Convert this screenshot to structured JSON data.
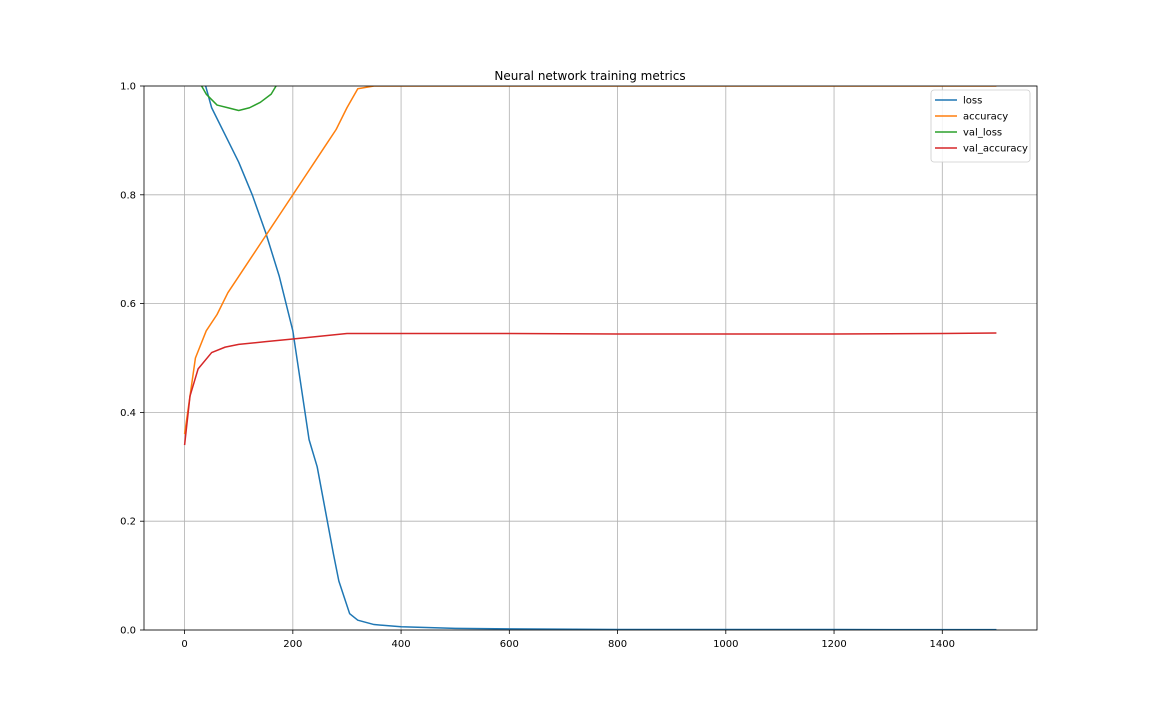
{
  "chart_data": {
    "type": "line",
    "title": "Neural network training metrics",
    "xlabel": "",
    "ylabel": "",
    "xlim": [
      -75,
      1575
    ],
    "ylim": [
      0.0,
      1.0
    ],
    "x_ticks": [
      0,
      200,
      400,
      600,
      800,
      1000,
      1200,
      1400
    ],
    "y_ticks": [
      0.0,
      0.2,
      0.4,
      0.6,
      0.8,
      1.0
    ],
    "x_tick_labels": [
      "0",
      "200",
      "400",
      "600",
      "800",
      "1000",
      "1200",
      "1400"
    ],
    "y_tick_labels": [
      "0.0",
      "0.2",
      "0.4",
      "0.6",
      "0.8",
      "1.0"
    ],
    "grid": true,
    "legend_position": "top-right",
    "series": [
      {
        "name": "loss",
        "color": "#1f77b4",
        "points": [
          [
            0,
            1.4
          ],
          [
            25,
            1.05
          ],
          [
            50,
            0.96
          ],
          [
            75,
            0.91
          ],
          [
            100,
            0.86
          ],
          [
            125,
            0.8
          ],
          [
            150,
            0.73
          ],
          [
            175,
            0.65
          ],
          [
            200,
            0.55
          ],
          [
            215,
            0.45
          ],
          [
            230,
            0.35
          ],
          [
            245,
            0.3
          ],
          [
            260,
            0.22
          ],
          [
            275,
            0.14
          ],
          [
            285,
            0.09
          ],
          [
            295,
            0.06
          ],
          [
            305,
            0.03
          ],
          [
            320,
            0.018
          ],
          [
            350,
            0.01
          ],
          [
            400,
            0.006
          ],
          [
            500,
            0.003
          ],
          [
            600,
            0.002
          ],
          [
            800,
            0.001
          ],
          [
            1000,
            0.001
          ],
          [
            1200,
            0.0008
          ],
          [
            1500,
            0.0006
          ]
        ]
      },
      {
        "name": "accuracy",
        "color": "#ff7f0e",
        "points": [
          [
            0,
            0.36
          ],
          [
            20,
            0.5
          ],
          [
            40,
            0.55
          ],
          [
            60,
            0.58
          ],
          [
            80,
            0.62
          ],
          [
            100,
            0.65
          ],
          [
            120,
            0.68
          ],
          [
            140,
            0.71
          ],
          [
            160,
            0.74
          ],
          [
            180,
            0.77
          ],
          [
            200,
            0.8
          ],
          [
            220,
            0.83
          ],
          [
            240,
            0.86
          ],
          [
            260,
            0.89
          ],
          [
            280,
            0.92
          ],
          [
            300,
            0.96
          ],
          [
            320,
            0.995
          ],
          [
            350,
            1.0
          ],
          [
            1500,
            1.0
          ]
        ]
      },
      {
        "name": "val_loss",
        "color": "#2ca02c",
        "points": [
          [
            0,
            1.3
          ],
          [
            20,
            1.02
          ],
          [
            40,
            0.985
          ],
          [
            60,
            0.965
          ],
          [
            80,
            0.96
          ],
          [
            100,
            0.955
          ],
          [
            120,
            0.96
          ],
          [
            140,
            0.97
          ],
          [
            160,
            0.985
          ],
          [
            175,
            1.01
          ],
          [
            200,
            1.06
          ],
          [
            300,
            1.3
          ]
        ]
      },
      {
        "name": "val_accuracy",
        "color": "#d62728",
        "points": [
          [
            0,
            0.34
          ],
          [
            10,
            0.43
          ],
          [
            25,
            0.48
          ],
          [
            50,
            0.51
          ],
          [
            75,
            0.52
          ],
          [
            100,
            0.525
          ],
          [
            150,
            0.53
          ],
          [
            200,
            0.535
          ],
          [
            250,
            0.54
          ],
          [
            300,
            0.545
          ],
          [
            350,
            0.545
          ],
          [
            400,
            0.545
          ],
          [
            600,
            0.545
          ],
          [
            800,
            0.544
          ],
          [
            1000,
            0.544
          ],
          [
            1200,
            0.544
          ],
          [
            1400,
            0.545
          ],
          [
            1500,
            0.546
          ]
        ]
      }
    ]
  }
}
